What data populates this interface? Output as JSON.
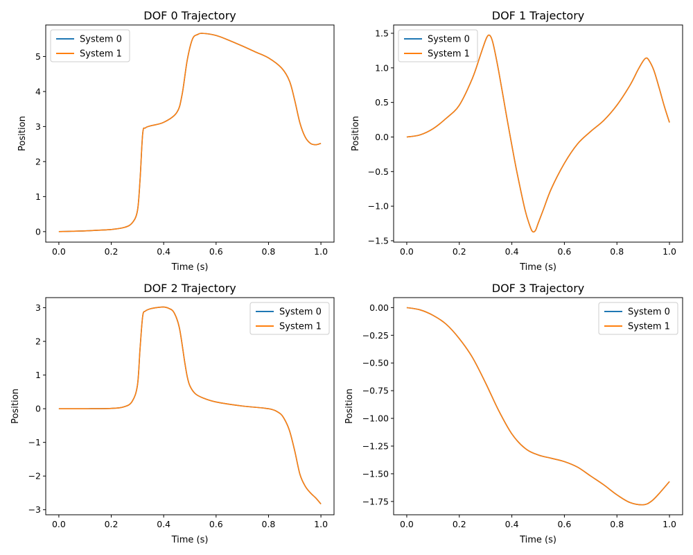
{
  "chart_data": [
    {
      "type": "line",
      "title": "DOF 0 Trajectory",
      "xlabel": "Time (s)",
      "ylabel": "Position",
      "xlim": [
        -0.05,
        1.05
      ],
      "ylim": [
        -0.3,
        5.9
      ],
      "xticks": [
        0.0,
        0.2,
        0.4,
        0.6,
        0.8,
        1.0
      ],
      "xtick_labels": [
        "0.0",
        "0.2",
        "0.4",
        "0.6",
        "0.8",
        "1.0"
      ],
      "yticks": [
        0,
        1,
        2,
        3,
        4,
        5
      ],
      "ytick_labels": [
        "0",
        "1",
        "2",
        "3",
        "4",
        "5"
      ],
      "legend_position": "upper left",
      "grid": false,
      "series": [
        {
          "name": "System 0",
          "color": "#1f77b4",
          "x": [
            0,
            0.05,
            0.1,
            0.15,
            0.2,
            0.25,
            0.28,
            0.3,
            0.31,
            0.32,
            0.33,
            0.35,
            0.4,
            0.45,
            0.47,
            0.49,
            0.51,
            0.53,
            0.55,
            0.6,
            0.65,
            0.7,
            0.75,
            0.8,
            0.85,
            0.88,
            0.9,
            0.92,
            0.94,
            0.96,
            0.98,
            1.0
          ],
          "y": [
            0,
            0.01,
            0.02,
            0.04,
            0.06,
            0.12,
            0.25,
            0.6,
            1.5,
            2.8,
            2.96,
            3.02,
            3.12,
            3.4,
            3.9,
            4.9,
            5.5,
            5.63,
            5.66,
            5.6,
            5.46,
            5.3,
            5.13,
            4.96,
            4.67,
            4.3,
            3.75,
            3.1,
            2.7,
            2.52,
            2.48,
            2.52
          ]
        },
        {
          "name": "System 1",
          "color": "#ff7f0e",
          "x": [
            0,
            0.05,
            0.1,
            0.15,
            0.2,
            0.25,
            0.28,
            0.3,
            0.31,
            0.32,
            0.33,
            0.35,
            0.4,
            0.45,
            0.47,
            0.49,
            0.51,
            0.53,
            0.55,
            0.6,
            0.65,
            0.7,
            0.75,
            0.8,
            0.85,
            0.88,
            0.9,
            0.92,
            0.94,
            0.96,
            0.98,
            1.0
          ],
          "y": [
            0,
            0.01,
            0.02,
            0.04,
            0.06,
            0.12,
            0.25,
            0.6,
            1.5,
            2.8,
            2.96,
            3.02,
            3.12,
            3.4,
            3.9,
            4.9,
            5.5,
            5.63,
            5.66,
            5.6,
            5.46,
            5.3,
            5.13,
            4.96,
            4.67,
            4.3,
            3.75,
            3.1,
            2.7,
            2.52,
            2.48,
            2.52
          ]
        }
      ]
    },
    {
      "type": "line",
      "title": "DOF 1 Trajectory",
      "xlabel": "Time (s)",
      "ylabel": "Position",
      "xlim": [
        -0.05,
        1.05
      ],
      "ylim": [
        -1.52,
        1.62
      ],
      "xticks": [
        0.0,
        0.2,
        0.4,
        0.6,
        0.8,
        1.0
      ],
      "xtick_labels": [
        "0.0",
        "0.2",
        "0.4",
        "0.6",
        "0.8",
        "1.0"
      ],
      "yticks": [
        -1.5,
        -1.0,
        -0.5,
        0.0,
        0.5,
        1.0,
        1.5
      ],
      "ytick_labels": [
        "−1.5",
        "−1.0",
        "−0.5",
        "0.0",
        "0.5",
        "1.0",
        "1.5"
      ],
      "legend_position": "upper left",
      "grid": false,
      "series": [
        {
          "name": "System 0",
          "color": "#1f77b4",
          "x": [
            0,
            0.05,
            0.1,
            0.15,
            0.2,
            0.25,
            0.28,
            0.3,
            0.31,
            0.32,
            0.33,
            0.35,
            0.38,
            0.4,
            0.42,
            0.45,
            0.47,
            0.48,
            0.49,
            0.5,
            0.52,
            0.55,
            0.6,
            0.65,
            0.7,
            0.75,
            0.8,
            0.85,
            0.88,
            0.9,
            0.91,
            0.92,
            0.94,
            0.96,
            0.98,
            1.0
          ],
          "y": [
            0,
            0.03,
            0.12,
            0.27,
            0.46,
            0.85,
            1.18,
            1.4,
            1.47,
            1.45,
            1.33,
            0.95,
            0.3,
            -0.12,
            -0.52,
            -1.05,
            -1.3,
            -1.37,
            -1.35,
            -1.25,
            -1.05,
            -0.75,
            -0.38,
            -0.1,
            0.08,
            0.24,
            0.46,
            0.75,
            0.97,
            1.1,
            1.14,
            1.12,
            0.97,
            0.72,
            0.45,
            0.21
          ]
        },
        {
          "name": "System 1",
          "color": "#ff7f0e",
          "x": [
            0,
            0.05,
            0.1,
            0.15,
            0.2,
            0.25,
            0.28,
            0.3,
            0.31,
            0.32,
            0.33,
            0.35,
            0.38,
            0.4,
            0.42,
            0.45,
            0.47,
            0.48,
            0.49,
            0.5,
            0.52,
            0.55,
            0.6,
            0.65,
            0.7,
            0.75,
            0.8,
            0.85,
            0.88,
            0.9,
            0.91,
            0.92,
            0.94,
            0.96,
            0.98,
            1.0
          ],
          "y": [
            0,
            0.03,
            0.12,
            0.27,
            0.46,
            0.85,
            1.18,
            1.4,
            1.47,
            1.45,
            1.33,
            0.95,
            0.3,
            -0.12,
            -0.52,
            -1.05,
            -1.3,
            -1.37,
            -1.35,
            -1.25,
            -1.05,
            -0.75,
            -0.38,
            -0.1,
            0.08,
            0.24,
            0.46,
            0.75,
            0.97,
            1.1,
            1.14,
            1.12,
            0.97,
            0.72,
            0.45,
            0.21
          ]
        }
      ]
    },
    {
      "type": "line",
      "title": "DOF 2 Trajectory",
      "xlabel": "Time (s)",
      "ylabel": "Position",
      "xlim": [
        -0.05,
        1.05
      ],
      "ylim": [
        -3.15,
        3.3
      ],
      "xticks": [
        0.0,
        0.2,
        0.4,
        0.6,
        0.8,
        1.0
      ],
      "xtick_labels": [
        "0.0",
        "0.2",
        "0.4",
        "0.6",
        "0.8",
        "1.0"
      ],
      "yticks": [
        -3,
        -2,
        -1,
        0,
        1,
        2,
        3
      ],
      "ytick_labels": [
        "−3",
        "−2",
        "−1",
        "0",
        "1",
        "2",
        "3"
      ],
      "legend_position": "upper right",
      "grid": false,
      "series": [
        {
          "name": "System 0",
          "color": "#1f77b4",
          "x": [
            0,
            0.1,
            0.2,
            0.25,
            0.28,
            0.3,
            0.31,
            0.32,
            0.33,
            0.35,
            0.38,
            0.4,
            0.42,
            0.44,
            0.46,
            0.48,
            0.49,
            0.5,
            0.52,
            0.55,
            0.6,
            0.7,
            0.8,
            0.84,
            0.86,
            0.88,
            0.9,
            0.92,
            0.94,
            0.96,
            0.98,
            1.0
          ],
          "y": [
            0,
            0,
            0.01,
            0.06,
            0.22,
            0.7,
            1.8,
            2.75,
            2.9,
            2.97,
            3.01,
            3.02,
            2.98,
            2.85,
            2.4,
            1.4,
            0.95,
            0.68,
            0.45,
            0.32,
            0.2,
            0.08,
            0,
            -0.12,
            -0.3,
            -0.65,
            -1.25,
            -1.95,
            -2.3,
            -2.5,
            -2.65,
            -2.83
          ]
        },
        {
          "name": "System 1",
          "color": "#ff7f0e",
          "x": [
            0,
            0.1,
            0.2,
            0.25,
            0.28,
            0.3,
            0.31,
            0.32,
            0.33,
            0.35,
            0.38,
            0.4,
            0.42,
            0.44,
            0.46,
            0.48,
            0.49,
            0.5,
            0.52,
            0.55,
            0.6,
            0.7,
            0.8,
            0.84,
            0.86,
            0.88,
            0.9,
            0.92,
            0.94,
            0.96,
            0.98,
            1.0
          ],
          "y": [
            0,
            0,
            0.01,
            0.06,
            0.22,
            0.7,
            1.8,
            2.75,
            2.9,
            2.97,
            3.01,
            3.02,
            2.98,
            2.85,
            2.4,
            1.4,
            0.95,
            0.68,
            0.45,
            0.32,
            0.2,
            0.08,
            0,
            -0.12,
            -0.3,
            -0.65,
            -1.25,
            -1.95,
            -2.3,
            -2.5,
            -2.65,
            -2.83
          ]
        }
      ]
    },
    {
      "type": "line",
      "title": "DOF 3 Trajectory",
      "xlabel": "Time (s)",
      "ylabel": "Position",
      "xlim": [
        -0.05,
        1.05
      ],
      "ylim": [
        -1.87,
        0.09
      ],
      "xticks": [
        0.0,
        0.2,
        0.4,
        0.6,
        0.8,
        1.0
      ],
      "xtick_labels": [
        "0.0",
        "0.2",
        "0.4",
        "0.6",
        "0.8",
        "1.0"
      ],
      "yticks": [
        -1.75,
        -1.5,
        -1.25,
        -1.0,
        -0.75,
        -0.5,
        -0.25,
        0.0
      ],
      "ytick_labels": [
        "−1.75",
        "−1.50",
        "−1.25",
        "−1.00",
        "−0.75",
        "−0.50",
        "−0.25",
        "0.00"
      ],
      "legend_position": "upper right",
      "grid": false,
      "series": [
        {
          "name": "System 0",
          "color": "#1f77b4",
          "x": [
            0,
            0.05,
            0.1,
            0.15,
            0.2,
            0.25,
            0.3,
            0.35,
            0.4,
            0.45,
            0.5,
            0.55,
            0.6,
            0.65,
            0.7,
            0.75,
            0.8,
            0.85,
            0.9,
            0.93,
            0.96,
            1.0
          ],
          "y": [
            0,
            -0.02,
            -0.07,
            -0.15,
            -0.28,
            -0.45,
            -0.68,
            -0.93,
            -1.14,
            -1.27,
            -1.33,
            -1.36,
            -1.39,
            -1.44,
            -1.52,
            -1.6,
            -1.69,
            -1.76,
            -1.78,
            -1.75,
            -1.68,
            -1.57
          ]
        },
        {
          "name": "System 1",
          "color": "#ff7f0e",
          "x": [
            0,
            0.05,
            0.1,
            0.15,
            0.2,
            0.25,
            0.3,
            0.35,
            0.4,
            0.45,
            0.5,
            0.55,
            0.6,
            0.65,
            0.7,
            0.75,
            0.8,
            0.85,
            0.9,
            0.93,
            0.96,
            1.0
          ],
          "y": [
            0,
            -0.02,
            -0.07,
            -0.15,
            -0.28,
            -0.45,
            -0.68,
            -0.93,
            -1.14,
            -1.27,
            -1.33,
            -1.36,
            -1.39,
            -1.44,
            -1.52,
            -1.6,
            -1.69,
            -1.76,
            -1.78,
            -1.75,
            -1.68,
            -1.57
          ]
        }
      ]
    }
  ]
}
